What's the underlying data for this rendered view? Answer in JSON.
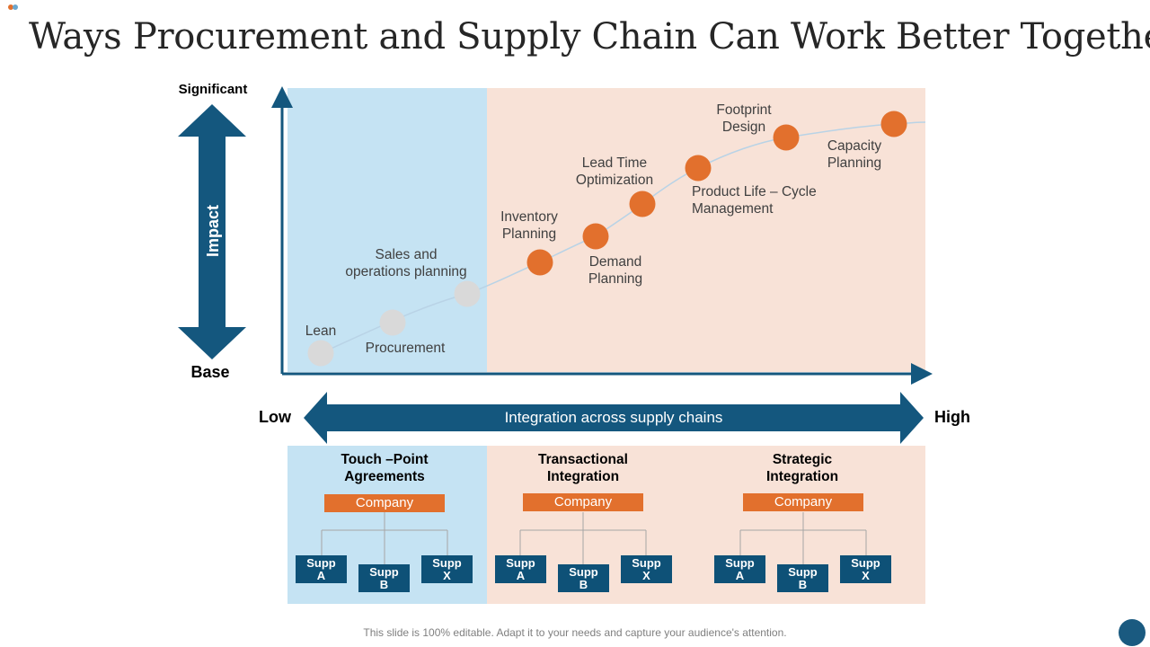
{
  "title": "Ways Procurement and Supply Chain Can Work Better Together",
  "colors": {
    "navy": "#14577e",
    "orange": "#e2702d",
    "grey_dot": "#d9d9d9",
    "blue_panel": "#c5e3f3",
    "peach_panel": "#f8e2d7"
  },
  "y_axis": {
    "label": "Impact",
    "top": "Significant",
    "bottom": "Base"
  },
  "x_axis": {
    "label": "Integration across supply chains",
    "left": "Low",
    "right": "High"
  },
  "milestones": [
    {
      "label": "Lean",
      "stage": "past"
    },
    {
      "label": "Procurement",
      "stage": "past"
    },
    {
      "label": "Sales and operations planning",
      "line1": "Sales and",
      "line2": "operations planning",
      "stage": "past"
    },
    {
      "label": "Inventory Planning",
      "line1": "Inventory",
      "line2": "Planning",
      "stage": "future"
    },
    {
      "label": "Demand Planning",
      "line1": "Demand",
      "line2": "Planning",
      "stage": "future"
    },
    {
      "label": "Lead Time Optimization",
      "line1": "Lead Time",
      "line2": "Optimization",
      "stage": "future"
    },
    {
      "label": "Product Life – Cycle Management",
      "line1": "Product Life – Cycle",
      "line2": "Management",
      "stage": "future"
    },
    {
      "label": "Footprint Design",
      "line1": "Footprint",
      "line2": "Design",
      "stage": "future"
    },
    {
      "label": "Capacity Planning",
      "line1": "Capacity",
      "line2": "Planning",
      "stage": "future"
    }
  ],
  "models": [
    {
      "title_line1": "Touch –Point",
      "title_line2": "Agreements",
      "company": "Company",
      "suppliers": [
        {
          "l1": "Supp",
          "l2": "A"
        },
        {
          "l1": "Supp",
          "l2": "B"
        },
        {
          "l1": "Supp",
          "l2": "X"
        }
      ]
    },
    {
      "title_line1": "Transactional",
      "title_line2": "Integration",
      "company": "Company",
      "suppliers": [
        {
          "l1": "Supp",
          "l2": "A"
        },
        {
          "l1": "Supp",
          "l2": "B"
        },
        {
          "l1": "Supp",
          "l2": "X"
        }
      ]
    },
    {
      "title_line1": "Strategic",
      "title_line2": "Integration",
      "company": "Company",
      "suppliers": [
        {
          "l1": "Supp",
          "l2": "A"
        },
        {
          "l1": "Supp",
          "l2": "B"
        },
        {
          "l1": "Supp",
          "l2": "X"
        }
      ]
    }
  ],
  "footer": "This slide is 100% editable. Adapt it to your needs and capture your audience's attention."
}
